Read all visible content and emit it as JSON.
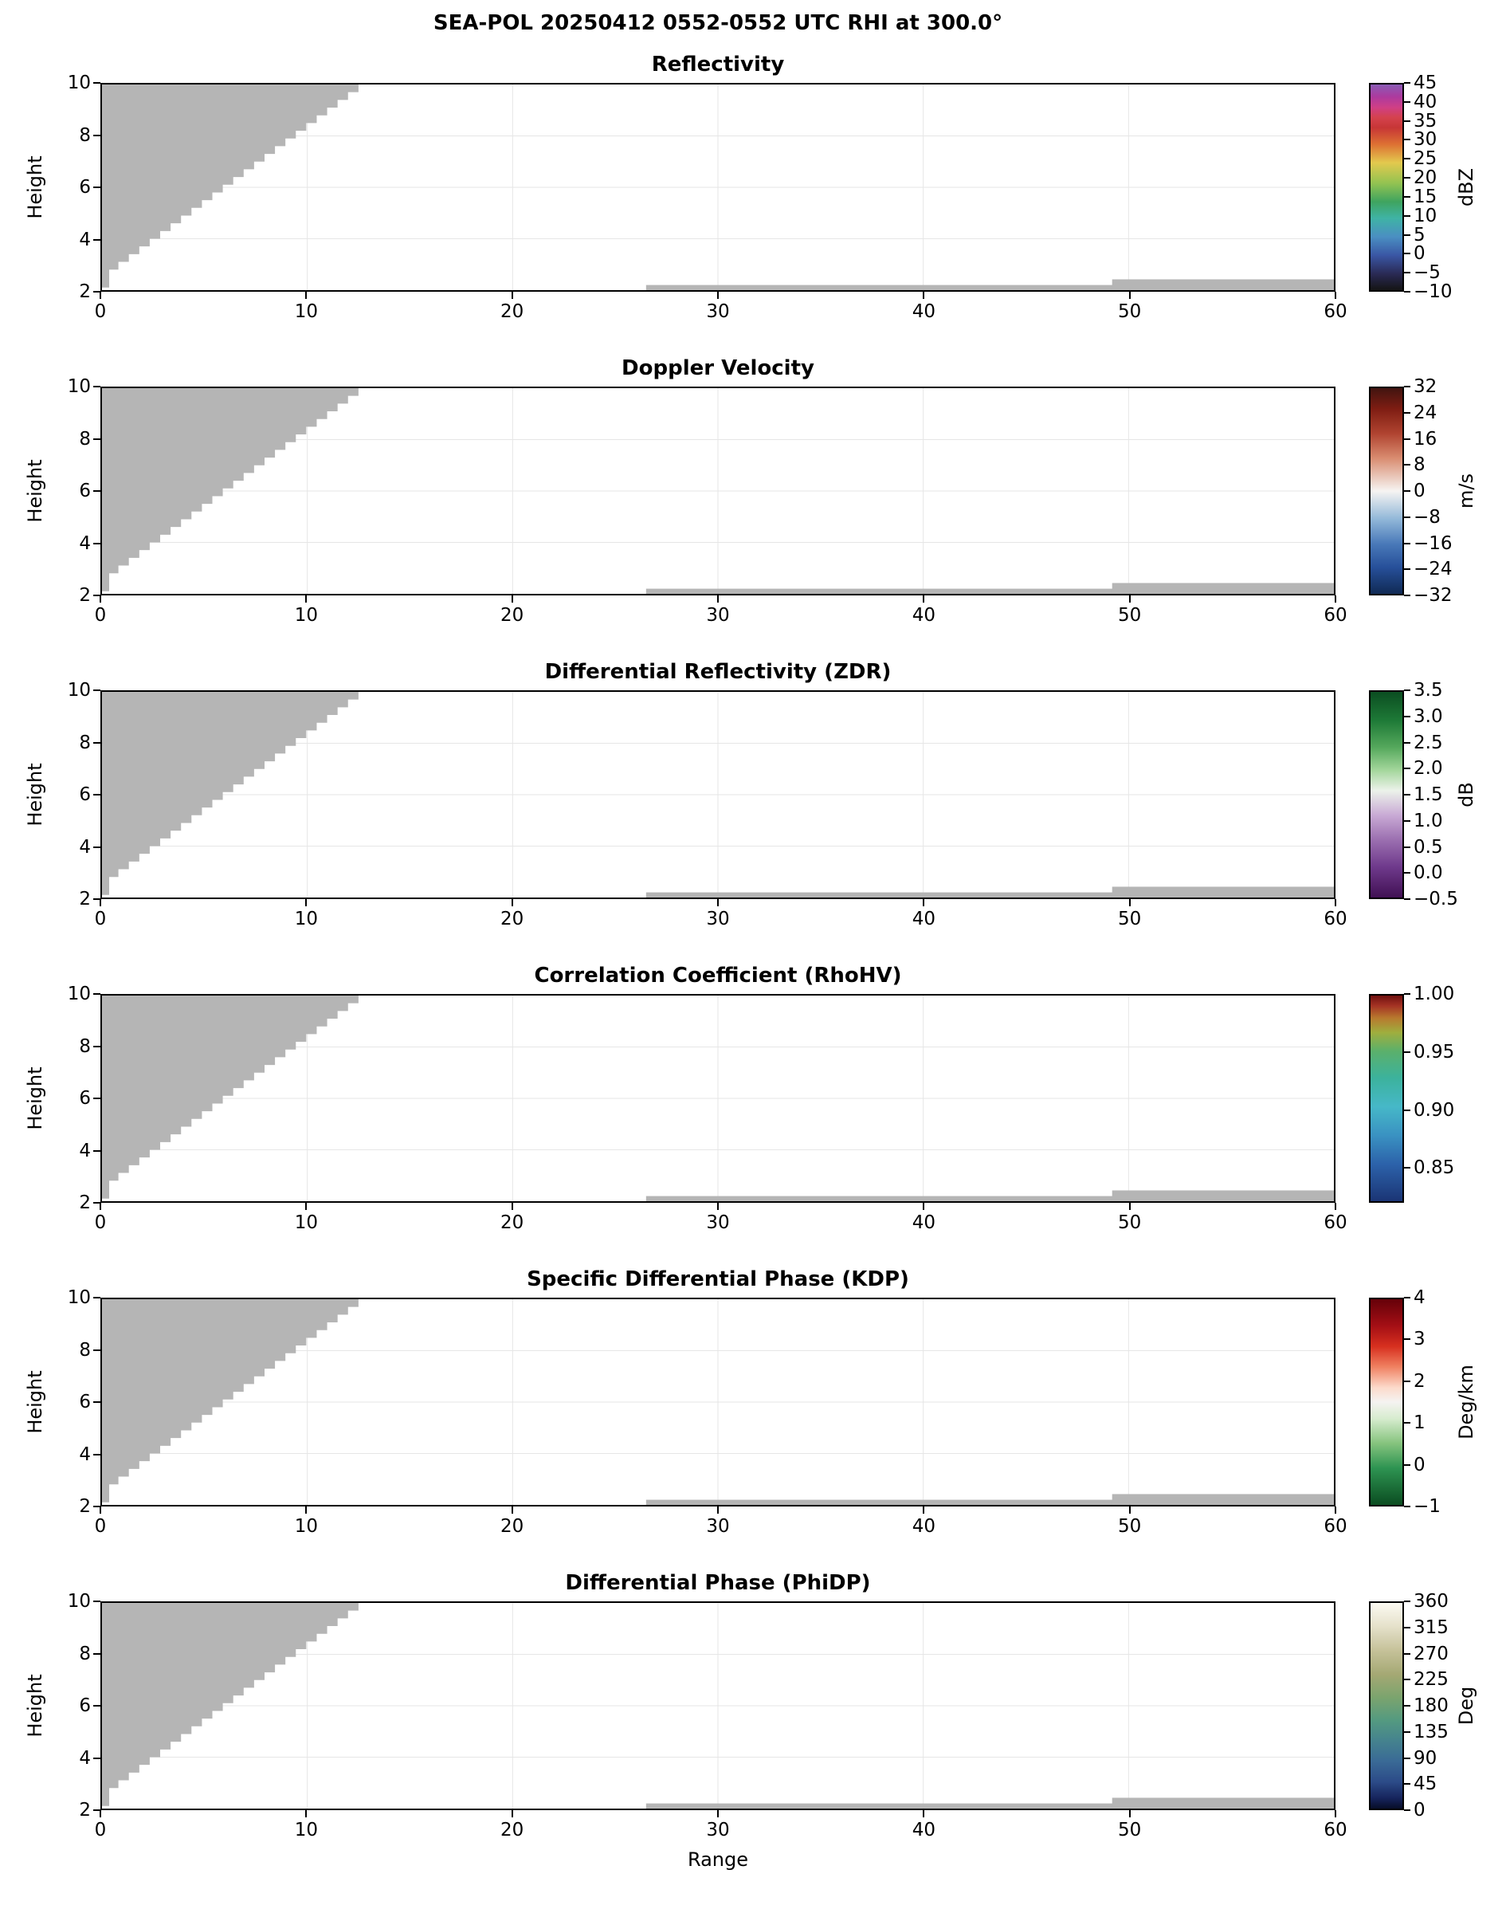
{
  "figure": {
    "suptitle": "SEA-POL 20250412 0552-0552 UTC RHI at 300.0°",
    "xlabel": "Range",
    "ylabel": "Height"
  },
  "chart_data": {
    "type": "heatmap",
    "title": "SEA-POL 20250412 0552-0552 UTC RHI at 300.0°",
    "subtitle_note": "Six stacked RHI panels; plot areas contain only gray no-data regions (no echo colors rendered)",
    "xlabel": "Range",
    "ylabel": "Height",
    "x_range": [
      0,
      60
    ],
    "y_range": [
      2,
      10
    ],
    "x_ticks": [
      "0",
      "10",
      "20",
      "30",
      "40",
      "50",
      "60"
    ],
    "y_ticks": [
      "2",
      "4",
      "6",
      "8",
      "10"
    ],
    "grid": true,
    "no_data_color": "#b5b5b5",
    "no_data_regions": {
      "wedge": {
        "apex_x": 13,
        "top_y": 10,
        "x1": 0.8,
        "y1": 2.8,
        "x0": 0.35,
        "y0": 2.1,
        "steps": 24
      },
      "strips": [
        {
          "x": 26.5,
          "width": 33.5,
          "y_bottom": 2.0,
          "y_top": 2.2
        },
        {
          "x": 49.2,
          "width": 10.8,
          "y_bottom": 2.0,
          "y_top": 2.42
        }
      ]
    },
    "panels": [
      {
        "title": "Reflectivity",
        "units": "dBZ",
        "cbar_min": -10,
        "cbar_max": 45,
        "cbar_tick_values": [
          45,
          40,
          35,
          30,
          25,
          20,
          15,
          10,
          5,
          0,
          -5,
          -10
        ],
        "cbar_tick_labels": [
          "45",
          "40",
          "35",
          "30",
          "25",
          "20",
          "15",
          "10",
          "5",
          "0",
          "−5",
          "−10"
        ],
        "gradient": [
          [
            "#8a5bb5",
            0
          ],
          [
            "#ad3a9e",
            6
          ],
          [
            "#cf3f87",
            11
          ],
          [
            "#d4424e",
            16
          ],
          [
            "#c73636",
            21
          ],
          [
            "#dd7033",
            29
          ],
          [
            "#e3c94e",
            38
          ],
          [
            "#93c351",
            48
          ],
          [
            "#3fa45f",
            57
          ],
          [
            "#3fb3a5",
            65
          ],
          [
            "#4a8fc2",
            74
          ],
          [
            "#3a57a5",
            83
          ],
          [
            "#2a2a55",
            92
          ],
          [
            "#141414",
            100
          ]
        ]
      },
      {
        "title": "Doppler Velocity",
        "units": "m/s",
        "cbar_min": -32,
        "cbar_max": 32,
        "cbar_tick_values": [
          32,
          24,
          16,
          8,
          0,
          -8,
          -16,
          -24,
          -32
        ],
        "cbar_tick_labels": [
          "32",
          "24",
          "16",
          "8",
          "0",
          "−8",
          "−16",
          "−24",
          "−32"
        ],
        "gradient": [
          [
            "#421410",
            0
          ],
          [
            "#7e1d12",
            10
          ],
          [
            "#b04330",
            22
          ],
          [
            "#d98c70",
            34
          ],
          [
            "#f6f4f2",
            50
          ],
          [
            "#8fb6d8",
            64
          ],
          [
            "#4878b8",
            76
          ],
          [
            "#27509a",
            87
          ],
          [
            "#102a55",
            100
          ]
        ]
      },
      {
        "title": "Differential Reflectivity (ZDR)",
        "units": "dB",
        "cbar_min": -0.5,
        "cbar_max": 3.5,
        "cbar_tick_values": [
          3.5,
          3.0,
          2.5,
          2.0,
          1.5,
          1.0,
          0.5,
          0.0,
          -0.5
        ],
        "cbar_tick_labels": [
          "3.5",
          "3.0",
          "2.5",
          "2.0",
          "1.5",
          "1.0",
          "0.5",
          "0.0",
          "−0.5"
        ],
        "gradient": [
          [
            "#0b4d21",
            0
          ],
          [
            "#1e7a37",
            14
          ],
          [
            "#55a85c",
            27
          ],
          [
            "#a3d69b",
            38
          ],
          [
            "#ecf2ea",
            48
          ],
          [
            "#c9aad5",
            60
          ],
          [
            "#9b6fb0",
            72
          ],
          [
            "#6f3a8c",
            85
          ],
          [
            "#411054",
            100
          ]
        ]
      },
      {
        "title": "Correlation Coefficient (RhoHV)",
        "units": "",
        "cbar_min": 0.82,
        "cbar_max": 1.0,
        "cbar_tick_values": [
          1.0,
          0.95,
          0.9,
          0.85
        ],
        "cbar_tick_labels": [
          "1.00",
          "0.95",
          "0.90",
          "0.85"
        ],
        "gradient": [
          [
            "#701010",
            0
          ],
          [
            "#a53324",
            5
          ],
          [
            "#b87a2e",
            11
          ],
          [
            "#9fae3e",
            18
          ],
          [
            "#5bb06b",
            27
          ],
          [
            "#3cb29c",
            40
          ],
          [
            "#46b8c8",
            54
          ],
          [
            "#3a92c2",
            68
          ],
          [
            "#2c62aa",
            82
          ],
          [
            "#1b3575",
            100
          ]
        ]
      },
      {
        "title": "Specific Differential Phase (KDP)",
        "units": "Deg/km",
        "cbar_min": -1,
        "cbar_max": 4,
        "cbar_tick_values": [
          4,
          3,
          2,
          1,
          0,
          -1
        ],
        "cbar_tick_labels": [
          "4",
          "3",
          "2",
          "1",
          "0",
          "−1"
        ],
        "gradient": [
          [
            "#650109",
            0
          ],
          [
            "#a50f15",
            13
          ],
          [
            "#d7301f",
            23
          ],
          [
            "#f08262",
            33
          ],
          [
            "#fcdacb",
            43
          ],
          [
            "#f5f3f1",
            50
          ],
          [
            "#d7eccf",
            58
          ],
          [
            "#86c47e",
            70
          ],
          [
            "#2e9452",
            82
          ],
          [
            "#0b4d21",
            100
          ]
        ]
      },
      {
        "title": "Differential Phase (PhiDP)",
        "units": "Deg",
        "cbar_min": 0,
        "cbar_max": 360,
        "cbar_tick_values": [
          360,
          315,
          270,
          225,
          180,
          135,
          90,
          45,
          0
        ],
        "cbar_tick_labels": [
          "360",
          "315",
          "270",
          "225",
          "180",
          "135",
          "90",
          "45",
          "0"
        ],
        "gradient": [
          [
            "#fcfaf2",
            0
          ],
          [
            "#e6e2cc",
            11
          ],
          [
            "#c6c29a",
            23
          ],
          [
            "#a4a873",
            35
          ],
          [
            "#7ba46e",
            46
          ],
          [
            "#549a80",
            57
          ],
          [
            "#45838e",
            67
          ],
          [
            "#3a6a96",
            77
          ],
          [
            "#2c4b88",
            87
          ],
          [
            "#16245c",
            95
          ],
          [
            "#070d28",
            100
          ]
        ]
      }
    ]
  }
}
